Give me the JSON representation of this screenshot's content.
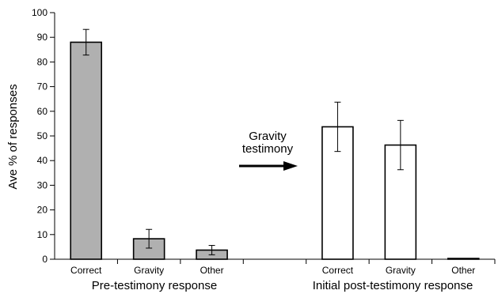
{
  "chart_data": {
    "type": "bar",
    "ylabel": "Ave % of responses",
    "ylim": [
      0,
      100
    ],
    "yticks": [
      0,
      10,
      20,
      30,
      40,
      50,
      60,
      70,
      80,
      90,
      100
    ],
    "grid": false,
    "groups": [
      {
        "label": "Pre-testimony response",
        "fill": "#b0b0b0",
        "categories": [
          "Correct",
          "Gravity",
          "Other"
        ],
        "values": [
          88,
          8.3,
          3.7
        ],
        "error": [
          5.2,
          3.8,
          1.9
        ]
      },
      {
        "label": "Initial post-testimony response",
        "fill": "#ffffff",
        "categories": [
          "Correct",
          "Gravity",
          "Other"
        ],
        "values": [
          53.7,
          46.3,
          0
        ],
        "error": [
          10,
          10,
          0
        ]
      }
    ],
    "annotation": {
      "text_lines": [
        "Gravity",
        "testimony"
      ],
      "arrow": "right"
    }
  }
}
